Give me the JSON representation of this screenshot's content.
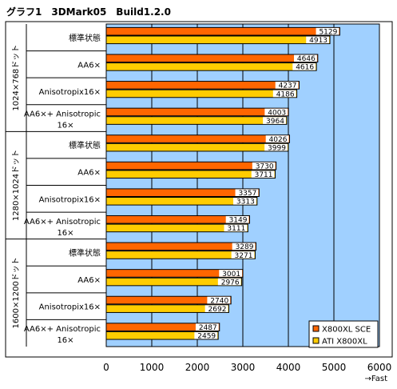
{
  "chart_data": {
    "type": "bar",
    "orientation": "horizontal",
    "title": "グラフ1　3DMark05　Build1.2.0",
    "xlim": [
      0,
      6000
    ],
    "xticks": [
      "0",
      "1000",
      "2000",
      "3000",
      "4000",
      "5000",
      "6000"
    ],
    "x_direction_label": "→Fast",
    "grid": "vertical",
    "legend_position": "bottom-right",
    "colors": {
      "X800XL SCE": "#FF6600",
      "ATI X800XL": "#FFCC00",
      "plot_background": "#A0D0FF"
    },
    "groups": [
      {
        "label": "1024×768ドット",
        "categories": [
          {
            "label": [
              "標準状態"
            ],
            "values": [
              5129,
              4913
            ]
          },
          {
            "label": [
              "AA6×"
            ],
            "values": [
              4646,
              4616
            ]
          },
          {
            "label": [
              "Anisotropix16×"
            ],
            "values": [
              4237,
              4186
            ]
          },
          {
            "label": [
              "AA6×+ Anisotropic",
              "16×"
            ],
            "values": [
              4003,
              3964
            ]
          }
        ]
      },
      {
        "label": "1280×1024ドット",
        "categories": [
          {
            "label": [
              "標準状態"
            ],
            "values": [
              4026,
              3999
            ]
          },
          {
            "label": [
              "AA6×"
            ],
            "values": [
              3730,
              3711
            ]
          },
          {
            "label": [
              "Anisotropix16×"
            ],
            "values": [
              3357,
              3313
            ]
          },
          {
            "label": [
              "AA6×+ Anisotropic",
              "16×"
            ],
            "values": [
              3149,
              3111
            ]
          }
        ]
      },
      {
        "label": "1600×1200ドット",
        "categories": [
          {
            "label": [
              "標準状態"
            ],
            "values": [
              3289,
              3271
            ]
          },
          {
            "label": [
              "AA6×"
            ],
            "values": [
              3001,
              2976
            ]
          },
          {
            "label": [
              "Anisotropix16×"
            ],
            "values": [
              2740,
              2692
            ]
          },
          {
            "label": [
              "AA6×+ Anisotropic",
              "16×"
            ],
            "values": [
              2487,
              2459
            ]
          }
        ]
      }
    ],
    "series": [
      {
        "name": "X800XL SCE"
      },
      {
        "name": "ATI X800XL"
      }
    ]
  }
}
